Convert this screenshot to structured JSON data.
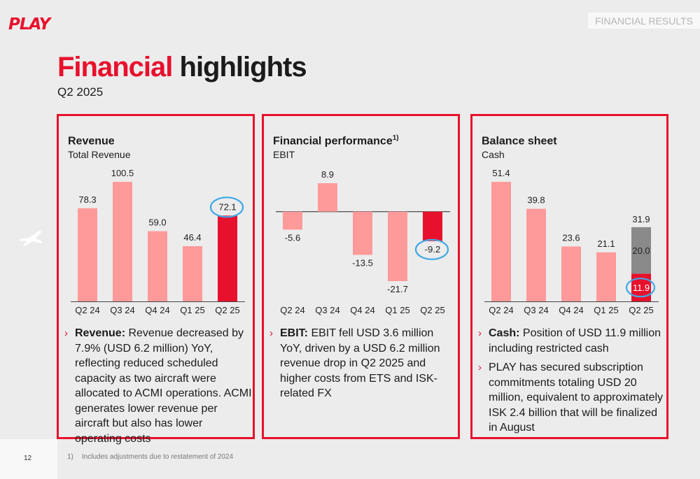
{
  "header": {
    "logo": "PLAY",
    "section": "FINANCIAL RESULTS",
    "title_red": "Financial",
    "title_rest": " highlights",
    "subtitle": "Q2 2025"
  },
  "colors": {
    "accent": "#e8112d",
    "bar_light": "#ff9a9a",
    "bar_gray": "#8a8a8a"
  },
  "panels": [
    {
      "title": "Revenue",
      "sup": "",
      "subtitle": "Total Revenue",
      "bullets": [
        {
          "bold": "Revenue:",
          "text": " Revenue decreased by 7.9% (USD 6.2 million) YoY, reflecting reduced scheduled capacity as two aircraft were allocated to ACMI operations. ACMI generates lower revenue per aircraft but also has lower operating costs"
        }
      ]
    },
    {
      "title": "Financial performance",
      "sup": "1)",
      "subtitle": "EBIT",
      "bullets": [
        {
          "bold": "EBIT:",
          "text": " EBIT fell USD 3.6 million YoY, driven by a USD 6.2 million revenue drop in Q2 2025 and higher costs from ETS and ISK-related FX"
        }
      ]
    },
    {
      "title": "Balance sheet",
      "sup": "",
      "subtitle": "Cash",
      "bullets": [
        {
          "bold": "Cash:",
          "text": " Position of USD 11.9 million including restricted cash"
        },
        {
          "bold": "",
          "text": "PLAY has secured subscription commitments totaling USD 20 million, equivalent to approximately ISK 2.4 billion that will be finalized in August"
        }
      ]
    }
  ],
  "chart_data": [
    {
      "type": "bar",
      "categories": [
        "Q2 24",
        "Q3 24",
        "Q4 24",
        "Q1 25",
        "Q2 25"
      ],
      "values": [
        78.3,
        100.5,
        59.0,
        46.4,
        72.1
      ],
      "labels": [
        "78.3",
        "100.5",
        "59.0",
        "46.4",
        "72.1"
      ],
      "highlight_index": 4,
      "circled_index": 4
    },
    {
      "type": "bar",
      "categories": [
        "Q2 24",
        "Q3 24",
        "Q4 24",
        "Q1 25",
        "Q2 25"
      ],
      "values": [
        -5.6,
        8.9,
        -13.5,
        -21.7,
        -9.2
      ],
      "labels": [
        "-5.6",
        "8.9",
        "-13.5",
        "-21.7",
        "-9.2"
      ],
      "highlight_index": 4,
      "circled_index": 4
    },
    {
      "type": "bar",
      "categories": [
        "Q2 24",
        "Q3 24",
        "Q4 24",
        "Q1 25",
        "Q2 25"
      ],
      "values": [
        51.4,
        39.8,
        23.6,
        21.1,
        31.9
      ],
      "labels": [
        "51.4",
        "39.8",
        "23.6",
        "21.1",
        "31.9"
      ],
      "stacked_last": {
        "base": 11.9,
        "base_label": "11.9",
        "top": 20.0,
        "top_label": "20.0"
      },
      "highlight_index": 4,
      "circled_index": 4
    }
  ],
  "footer": {
    "page": "12",
    "footnote_num": "1)",
    "footnote_text": "Includes adjustments due to restatement of 2024"
  }
}
